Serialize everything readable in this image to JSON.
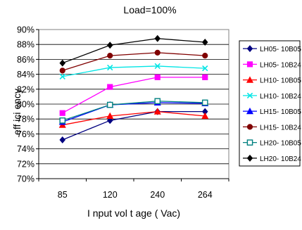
{
  "chart_data": {
    "type": "line",
    "title": "Load=100%",
    "xlabel": "I nput  vol t age ( Vac)",
    "ylabel": "eff ici ency",
    "categories": [
      "85",
      "120",
      "240",
      "264"
    ],
    "ylim": [
      70,
      90
    ],
    "yticks": [
      "70%",
      "72%",
      "74%",
      "76%",
      "78%",
      "80%",
      "82%",
      "84%",
      "86%",
      "88%",
      "90%"
    ],
    "grid": true,
    "legend_position": "right",
    "series": [
      {
        "name": "LH05- 10B05",
        "values": [
          75.2,
          77.8,
          79.0,
          79.0
        ],
        "color": "#000080",
        "marker": "diamond"
      },
      {
        "name": "LH05- 10B24",
        "values": [
          78.8,
          82.3,
          83.6,
          83.6
        ],
        "color": "#ff00ff",
        "marker": "square"
      },
      {
        "name": "LH10- 10B05",
        "values": [
          77.2,
          78.4,
          79.0,
          78.4
        ],
        "color": "#ff0000",
        "marker": "triangle"
      },
      {
        "name": "LH10- 10B24",
        "values": [
          83.7,
          84.9,
          85.1,
          84.8
        ],
        "color": "#00e5e5",
        "marker": "x"
      },
      {
        "name": "LH15- 10B05",
        "values": [
          77.6,
          79.9,
          80.2,
          80.1
        ],
        "color": "#0000ff",
        "marker": "triangle"
      },
      {
        "name": "LH15- 10B24",
        "values": [
          84.5,
          86.5,
          86.9,
          86.5
        ],
        "color": "#800000",
        "marker": "circle"
      },
      {
        "name": "LH20- 10B05",
        "values": [
          77.8,
          79.9,
          80.4,
          80.2
        ],
        "color": "#008080",
        "marker": "square-open"
      },
      {
        "name": "LH20- 10B24",
        "values": [
          85.5,
          87.9,
          88.8,
          88.3
        ],
        "color": "#000000",
        "marker": "diamond"
      }
    ]
  }
}
